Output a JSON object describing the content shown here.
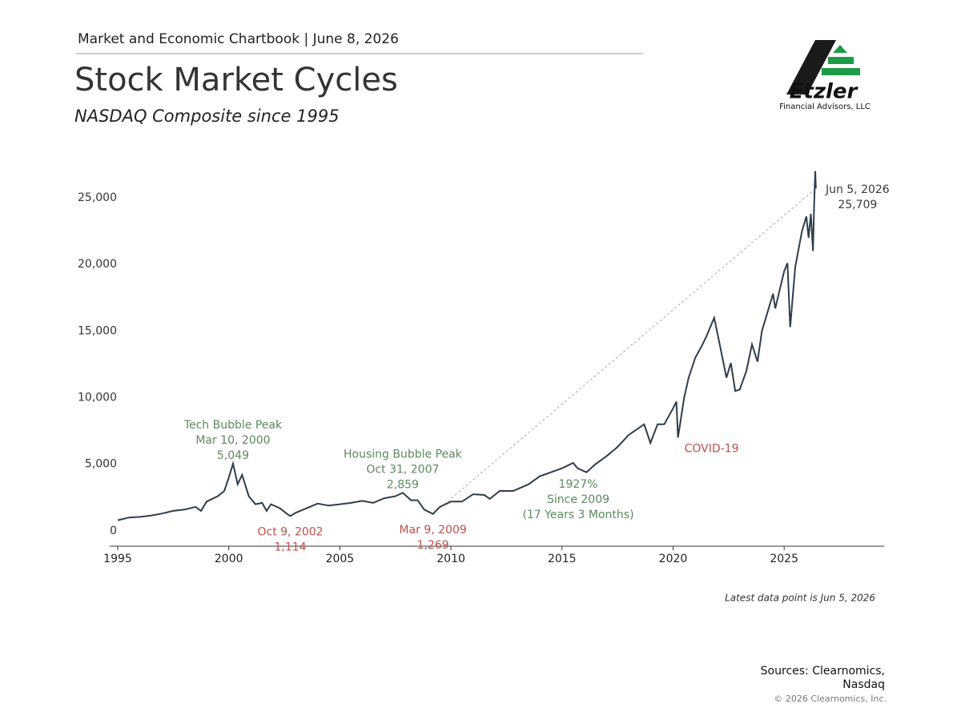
{
  "header": {
    "chartbook": "Market and Economic Chartbook | June 8, 2026",
    "title": "Stock Market Cycles",
    "subtitle": "NASDAQ Composite since 1995"
  },
  "logo": {
    "name": "Etzler",
    "tagline": "Financial Advisors, LLC"
  },
  "chart_data": {
    "type": "line",
    "color": "#2f3d4c",
    "x": [
      1995.0,
      1995.5,
      1996.0,
      1996.5,
      1997.0,
      1997.5,
      1998.0,
      1998.5,
      1998.75,
      1999.0,
      1999.5,
      1999.8,
      2000.0,
      2000.19,
      2000.4,
      2000.6,
      2000.9,
      2001.2,
      2001.5,
      2001.7,
      2001.9,
      2002.3,
      2002.6,
      2002.77,
      2003.0,
      2003.5,
      2004.0,
      2004.5,
      2005.0,
      2005.5,
      2006.0,
      2006.5,
      2007.0,
      2007.5,
      2007.83,
      2008.2,
      2008.5,
      2008.8,
      2009.19,
      2009.5,
      2010.0,
      2010.5,
      2011.0,
      2011.5,
      2011.75,
      2012.2,
      2012.8,
      2013.5,
      2014.0,
      2014.5,
      2015.0,
      2015.5,
      2015.7,
      2016.1,
      2016.5,
      2017.0,
      2017.5,
      2018.0,
      2018.7,
      2018.98,
      2019.3,
      2019.6,
      2020.0,
      2020.15,
      2020.22,
      2020.5,
      2020.7,
      2021.0,
      2021.3,
      2021.5,
      2021.85,
      2022.1,
      2022.4,
      2022.6,
      2022.8,
      2023.0,
      2023.3,
      2023.55,
      2023.8,
      2024.0,
      2024.5,
      2024.6,
      2025.0,
      2025.15,
      2025.27,
      2025.5,
      2025.8,
      2026.0,
      2026.1,
      2026.2,
      2026.3,
      2026.35,
      2026.4,
      2026.43
    ],
    "series": [
      {
        "name": "NASDAQ Composite",
        "color": "#2f3d4c",
        "values": [
          800,
          1000,
          1050,
          1150,
          1300,
          1500,
          1600,
          1800,
          1500,
          2200,
          2600,
          3000,
          4000,
          5049,
          3500,
          4200,
          2600,
          2000,
          2100,
          1500,
          2000,
          1700,
          1300,
          1114,
          1350,
          1700,
          2050,
          1900,
          2000,
          2100,
          2250,
          2100,
          2450,
          2600,
          2859,
          2300,
          2300,
          1600,
          1269,
          1800,
          2200,
          2200,
          2750,
          2700,
          2400,
          3000,
          3000,
          3500,
          4100,
          4400,
          4700,
          5100,
          4700,
          4400,
          5000,
          5600,
          6300,
          7200,
          8000,
          6600,
          8000,
          8000,
          9200,
          9700,
          7000,
          10000,
          11500,
          13000,
          13900,
          14600,
          16000,
          14000,
          11500,
          12600,
          10500,
          10600,
          12000,
          14000,
          12700,
          15000,
          17800,
          16700,
          19500,
          20100,
          15300,
          19800,
          22500,
          23600,
          22000,
          23800,
          21000,
          24500,
          27000,
          25709
        ]
      }
    ],
    "xlim": [
      1995,
      2029.5
    ],
    "xticks": [
      1995,
      2000,
      2005,
      2010,
      2015,
      2020,
      2025
    ],
    "ylim": [
      -1150,
      27500
    ],
    "yticks": [
      0,
      {
        "value": 5000,
        "label": "5,000"
      },
      {
        "value": 10000,
        "label": "10,000"
      },
      {
        "value": 15000,
        "label": "15,000"
      },
      {
        "value": 20000,
        "label": "20,000"
      },
      {
        "value": 25000,
        "label": "25,000"
      }
    ],
    "annotations": [
      {
        "label": "Tech Bubble Peak",
        "date": "Mar 10, 2000",
        "x": 2000.19,
        "value": 5049,
        "value_label": "5,049",
        "color": "#5b8a5e",
        "position": "above"
      },
      {
        "date": "Oct 9, 2002",
        "x": 2002.77,
        "value": 1114,
        "value_label": "1,114",
        "color": "#c0504d",
        "position": "below"
      },
      {
        "label": "Housing Bubble Peak",
        "date": "Oct 31, 2007",
        "x": 2007.83,
        "value": 2859,
        "value_label": "2,859",
        "color": "#5b8a5e",
        "position": "above"
      },
      {
        "date": "Mar 9, 2009",
        "x": 2009.19,
        "value": 1269,
        "value_label": "1,269",
        "color": "#c0504d",
        "position": "below"
      },
      {
        "label": "COVID-19",
        "x": 2020.22,
        "value": 7000,
        "color": "#c0504d",
        "position": "right"
      },
      {
        "date": "Jun 5, 2026",
        "x": 2026.43,
        "value": 25709,
        "value_label": "25,709",
        "color": "#3a3a3a",
        "position": "right"
      }
    ],
    "return_note": [
      "1927%",
      "Since 2009",
      "(17 Years 3 Months)"
    ],
    "footnote": "Latest data point is Jun 5, 2026"
  },
  "footer": {
    "sources": [
      "Sources: Clearnomics,",
      "Nasdaq"
    ],
    "copyright": "© 2026 Clearnomics, Inc."
  }
}
